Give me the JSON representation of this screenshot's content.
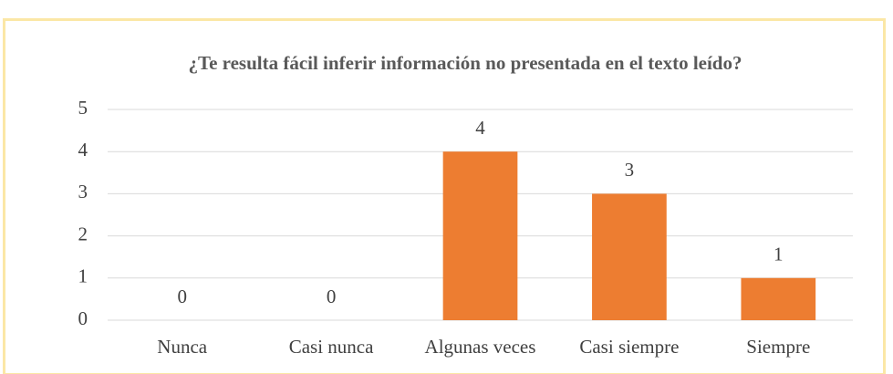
{
  "chart_data": {
    "type": "bar",
    "title": "¿Te resulta fácil inferir información no presentada en el texto leído?",
    "categories": [
      "Nunca",
      "Casi nunca",
      "Algunas veces",
      "Casi siempre",
      "Siempre"
    ],
    "values": [
      0,
      0,
      4,
      3,
      1
    ],
    "color": "#ed7d31",
    "ylim": [
      0,
      5
    ],
    "yticks": [
      0,
      1,
      2,
      3,
      4,
      5
    ],
    "grid": true,
    "data_labels": true
  }
}
